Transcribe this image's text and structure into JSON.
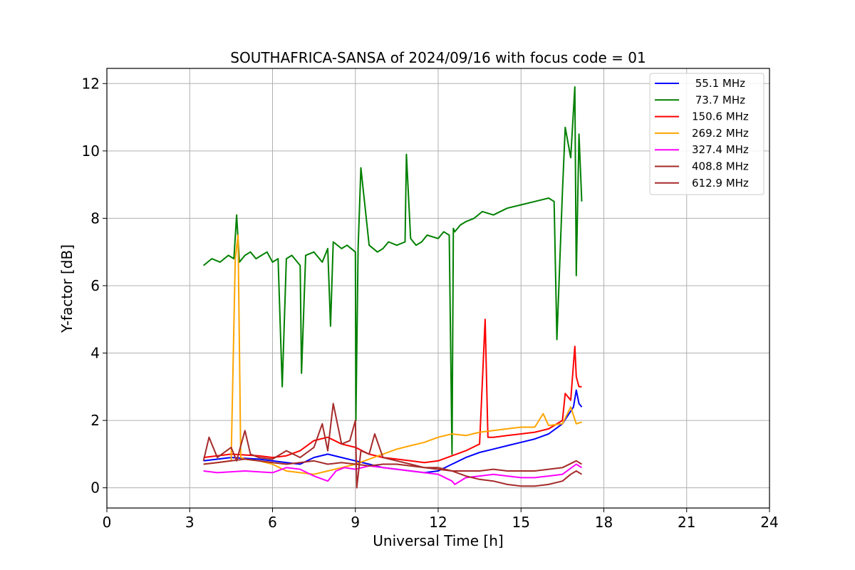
{
  "chart_data": {
    "type": "line",
    "title": "SOUTHAFRICA-SANSA of 2024/09/16 with focus code = 01",
    "xlabel": "Universal Time [h]",
    "ylabel": "Y-factor [dB]",
    "xlim": [
      0,
      24
    ],
    "ylim": [
      -0.6,
      12.45
    ],
    "xticks": [
      0,
      3,
      6,
      9,
      12,
      15,
      18,
      21,
      24
    ],
    "yticks": [
      0,
      2,
      4,
      6,
      8,
      10,
      12
    ],
    "grid": true,
    "legend_position": "top-right",
    "series": [
      {
        "name": " 55.1 MHz",
        "color": "#0000ff",
        "x": [
          3.5,
          4.5,
          5.5,
          6.0,
          6.5,
          7.0,
          7.5,
          8.0,
          8.5,
          9.0,
          9.5,
          10.0,
          10.5,
          11.0,
          11.5,
          12.0,
          12.5,
          13.0,
          13.5,
          14.0,
          14.5,
          15.0,
          15.5,
          16.0,
          16.5,
          16.9,
          17.0,
          17.1,
          17.2
        ],
        "y": [
          0.8,
          0.9,
          0.85,
          0.8,
          0.75,
          0.7,
          0.9,
          1.0,
          0.9,
          0.8,
          0.7,
          0.6,
          0.55,
          0.5,
          0.45,
          0.5,
          0.7,
          0.9,
          1.05,
          1.15,
          1.25,
          1.35,
          1.45,
          1.6,
          1.9,
          2.4,
          2.9,
          2.5,
          2.4
        ]
      },
      {
        "name": " 73.7 MHz",
        "color": "#008000",
        "x": [
          3.5,
          3.8,
          4.1,
          4.4,
          4.6,
          4.7,
          4.8,
          5.0,
          5.2,
          5.4,
          5.6,
          5.8,
          6.0,
          6.2,
          6.35,
          6.5,
          6.7,
          7.0,
          7.05,
          7.2,
          7.5,
          7.8,
          8.0,
          8.1,
          8.2,
          8.5,
          8.7,
          9.0,
          9.02,
          9.1,
          9.2,
          9.5,
          9.8,
          10.0,
          10.2,
          10.5,
          10.8,
          10.85,
          11.0,
          11.2,
          11.4,
          11.6,
          12.0,
          12.2,
          12.4,
          12.5,
          12.55,
          12.6,
          12.8,
          13.0,
          13.3,
          13.6,
          14.0,
          14.5,
          15.0,
          15.5,
          16.0,
          16.2,
          16.3,
          16.5,
          16.6,
          16.8,
          16.95,
          17.0,
          17.1,
          17.2
        ],
        "y": [
          6.6,
          6.8,
          6.7,
          6.9,
          6.8,
          8.1,
          6.7,
          6.9,
          7.0,
          6.8,
          6.9,
          7.0,
          6.7,
          6.8,
          3.0,
          6.8,
          6.9,
          6.6,
          3.4,
          6.9,
          7.0,
          6.7,
          7.1,
          4.8,
          7.3,
          7.1,
          7.2,
          7.0,
          2.0,
          7.1,
          9.5,
          7.2,
          7.0,
          7.1,
          7.3,
          7.2,
          7.3,
          9.9,
          7.4,
          7.2,
          7.3,
          7.5,
          7.4,
          7.6,
          7.5,
          1.0,
          7.7,
          7.6,
          7.8,
          7.9,
          8.0,
          8.2,
          8.1,
          8.3,
          8.4,
          8.5,
          8.6,
          8.5,
          4.4,
          8.8,
          10.7,
          9.8,
          11.9,
          6.3,
          10.5,
          8.5
        ]
      },
      {
        "name": "150.6 MHz",
        "color": "#ff0000",
        "x": [
          3.5,
          4.5,
          5.5,
          6.0,
          6.5,
          7.0,
          7.5,
          8.0,
          8.5,
          9.0,
          9.5,
          10.0,
          10.5,
          11.0,
          11.5,
          12.0,
          12.5,
          13.0,
          13.5,
          13.7,
          13.8,
          14.0,
          14.5,
          15.0,
          15.5,
          16.0,
          16.5,
          16.6,
          16.8,
          16.95,
          17.0,
          17.1,
          17.2
        ],
        "y": [
          0.9,
          1.0,
          0.95,
          0.9,
          0.95,
          1.1,
          1.4,
          1.5,
          1.3,
          1.2,
          1.0,
          0.9,
          0.85,
          0.8,
          0.75,
          0.8,
          0.95,
          1.1,
          1.3,
          5.0,
          1.5,
          1.5,
          1.55,
          1.6,
          1.65,
          1.75,
          2.0,
          2.8,
          2.6,
          4.2,
          3.3,
          3.0,
          3.0
        ]
      },
      {
        "name": "269.2 MHz",
        "color": "#ffa500",
        "x": [
          3.5,
          4.0,
          4.5,
          4.65,
          4.75,
          4.85,
          5.0,
          5.5,
          6.0,
          6.5,
          7.0,
          7.5,
          8.0,
          8.5,
          9.0,
          9.5,
          10.0,
          10.5,
          11.0,
          11.5,
          12.0,
          12.5,
          13.0,
          13.5,
          14.0,
          14.5,
          15.0,
          15.5,
          15.8,
          16.0,
          16.5,
          16.8,
          17.0,
          17.2
        ],
        "y": [
          0.7,
          0.75,
          0.8,
          6.8,
          7.5,
          0.9,
          0.85,
          0.8,
          0.7,
          0.5,
          0.45,
          0.4,
          0.5,
          0.6,
          0.7,
          0.85,
          1.0,
          1.15,
          1.25,
          1.35,
          1.5,
          1.6,
          1.55,
          1.65,
          1.7,
          1.75,
          1.8,
          1.8,
          2.2,
          1.85,
          1.9,
          2.4,
          1.9,
          1.95
        ]
      },
      {
        "name": "327.4 MHz",
        "color": "#ff00ff",
        "x": [
          3.5,
          4.0,
          5.0,
          6.0,
          6.5,
          7.0,
          7.5,
          8.0,
          8.3,
          8.6,
          9.0,
          9.5,
          10.0,
          10.5,
          11.0,
          11.5,
          12.0,
          12.5,
          12.6,
          13.0,
          13.5,
          14.0,
          14.5,
          15.0,
          15.5,
          16.0,
          16.5,
          17.0,
          17.2
        ],
        "y": [
          0.5,
          0.45,
          0.5,
          0.45,
          0.6,
          0.55,
          0.35,
          0.2,
          0.5,
          0.6,
          0.55,
          0.65,
          0.6,
          0.55,
          0.5,
          0.45,
          0.4,
          0.2,
          0.1,
          0.3,
          0.35,
          0.4,
          0.35,
          0.3,
          0.3,
          0.35,
          0.4,
          0.7,
          0.6
        ]
      },
      {
        "name": "408.8 MHz",
        "color": "#a52a2a",
        "x": [
          3.5,
          4.0,
          4.5,
          5.0,
          5.5,
          6.0,
          6.5,
          7.0,
          7.5,
          8.0,
          8.5,
          9.0,
          9.5,
          10.0,
          10.5,
          11.0,
          11.5,
          12.0,
          12.5,
          13.0,
          13.5,
          14.0,
          14.5,
          15.0,
          15.5,
          16.0,
          16.5,
          17.0,
          17.2
        ],
        "y": [
          0.7,
          0.75,
          0.8,
          0.85,
          0.8,
          0.75,
          0.7,
          0.75,
          0.8,
          0.7,
          0.75,
          0.7,
          0.65,
          0.7,
          0.7,
          0.65,
          0.6,
          0.55,
          0.5,
          0.5,
          0.5,
          0.55,
          0.5,
          0.5,
          0.5,
          0.55,
          0.6,
          0.8,
          0.7
        ]
      },
      {
        "name": "612.9 MHz",
        "color": "#a52a2a",
        "x": [
          3.5,
          3.7,
          4.0,
          4.5,
          4.7,
          5.0,
          5.2,
          5.5,
          6.0,
          6.5,
          7.0,
          7.5,
          7.8,
          8.0,
          8.2,
          8.5,
          8.8,
          9.0,
          9.05,
          9.2,
          9.5,
          9.7,
          10.0,
          10.5,
          11.0,
          11.5,
          12.0,
          12.5,
          13.0,
          13.5,
          14.0,
          14.5,
          15.0,
          15.5,
          16.0,
          16.5,
          16.8,
          17.0,
          17.2
        ],
        "y": [
          0.8,
          1.5,
          0.9,
          1.2,
          0.8,
          1.7,
          1.0,
          0.9,
          0.85,
          1.1,
          0.9,
          1.2,
          1.9,
          1.1,
          2.5,
          1.3,
          1.4,
          2.0,
          0.0,
          1.1,
          1.0,
          1.6,
          0.9,
          0.8,
          0.7,
          0.6,
          0.6,
          0.5,
          0.35,
          0.25,
          0.2,
          0.1,
          0.05,
          0.05,
          0.1,
          0.2,
          0.4,
          0.5,
          0.4
        ]
      }
    ]
  }
}
